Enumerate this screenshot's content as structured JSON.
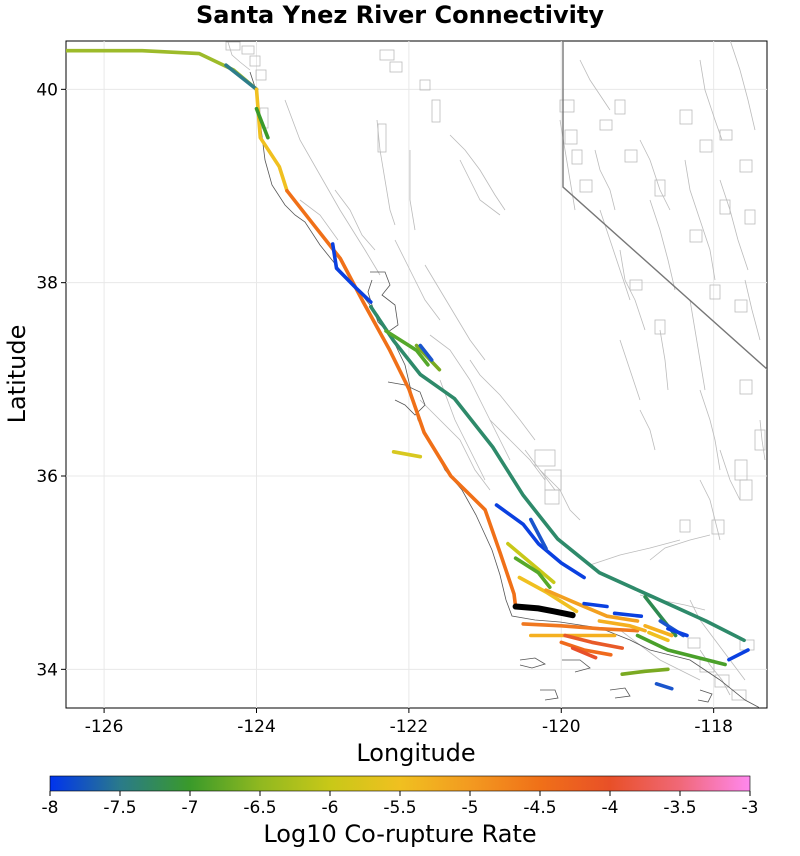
{
  "chart_data": {
    "type": "map",
    "title": "Santa Ynez River Connectivity",
    "xlabel": "Longitude",
    "ylabel": "Latitude",
    "xlim": [
      -126.5,
      -117.3
    ],
    "ylim": [
      33.6,
      40.5
    ],
    "x_ticks": [
      -126,
      -124,
      -122,
      -120,
      -118
    ],
    "y_ticks": [
      34,
      36,
      38,
      40
    ],
    "grid": true,
    "colorbar": {
      "label": "Log10 Co-rupture Rate",
      "min": -8,
      "max": -3,
      "ticks": [
        "-8",
        "-7.5",
        "-7",
        "-6.5",
        "-6",
        "-5.5",
        "-5",
        "-4.5",
        "-4",
        "-3.5",
        "-3"
      ],
      "colors": [
        "#0033ee",
        "#2a7a8a",
        "#3a9a2a",
        "#90b820",
        "#c8c818",
        "#f0c020",
        "#f39a20",
        "#f07018",
        "#e85028",
        "#f06878",
        "#ff88ee"
      ]
    },
    "source_fault": {
      "name": "Santa Ynez River",
      "color": "#000000",
      "points": [
        [
          -120.6,
          34.65
        ],
        [
          -120.3,
          34.63
        ],
        [
          -120.1,
          34.6
        ],
        [
          -119.85,
          34.56
        ]
      ]
    },
    "fault_sections": [
      {
        "rate": -5.9,
        "color": "#9dbb2a",
        "points": [
          [
            -126.5,
            40.4
          ],
          [
            -125.5,
            40.4
          ],
          [
            -124.75,
            40.37
          ],
          [
            -124.3,
            40.2
          ],
          [
            -124.0,
            40.0
          ]
        ]
      },
      {
        "rate": -7.6,
        "color": "#2e7d8a",
        "points": [
          [
            -124.4,
            40.25
          ],
          [
            -124.0,
            40.0
          ]
        ]
      },
      {
        "rate": -5.5,
        "color": "#f0c020",
        "points": [
          [
            -124.0,
            40.0
          ],
          [
            -123.95,
            39.5
          ],
          [
            -123.7,
            39.2
          ],
          [
            -123.6,
            38.95
          ]
        ]
      },
      {
        "rate": -4.6,
        "color": "#f07018",
        "points": [
          [
            -123.6,
            38.95
          ],
          [
            -123.25,
            38.6
          ],
          [
            -122.9,
            38.25
          ],
          [
            -122.6,
            37.8
          ],
          [
            -122.25,
            37.3
          ],
          [
            -122.0,
            36.9
          ],
          [
            -121.8,
            36.45
          ],
          [
            -121.45,
            36.0
          ],
          [
            -121.0,
            35.65
          ],
          [
            -120.8,
            35.2
          ],
          [
            -120.62,
            34.78
          ],
          [
            -120.6,
            34.65
          ]
        ]
      },
      {
        "rate": -7.1,
        "color": "#3a9a2a",
        "points": [
          [
            -124.0,
            39.8
          ],
          [
            -123.85,
            39.5
          ]
        ]
      },
      {
        "rate": -7.9,
        "color": "#0a40e0",
        "points": [
          [
            -123.0,
            38.4
          ],
          [
            -122.95,
            38.15
          ],
          [
            -122.7,
            37.95
          ],
          [
            -122.5,
            37.8
          ]
        ]
      },
      {
        "rate": -7.6,
        "color": "#2e8a6a",
        "points": [
          [
            -122.5,
            37.75
          ],
          [
            -122.2,
            37.4
          ],
          [
            -121.85,
            37.05
          ],
          [
            -121.4,
            36.8
          ],
          [
            -120.9,
            36.3
          ],
          [
            -120.5,
            35.8
          ],
          [
            -120.05,
            35.35
          ],
          [
            -119.5,
            35.0
          ],
          [
            -118.8,
            34.75
          ],
          [
            -118.1,
            34.5
          ],
          [
            -117.6,
            34.3
          ]
        ]
      },
      {
        "rate": -6.9,
        "color": "#55a82a",
        "points": [
          [
            -122.3,
            37.5
          ],
          [
            -121.9,
            37.3
          ],
          [
            -121.75,
            37.15
          ]
        ]
      },
      {
        "rate": -6.7,
        "color": "#7aaa22",
        "points": [
          [
            -121.9,
            37.35
          ],
          [
            -121.6,
            37.1
          ]
        ]
      },
      {
        "rate": -7.8,
        "color": "#1a55cc",
        "points": [
          [
            -121.85,
            37.35
          ],
          [
            -121.7,
            37.2
          ]
        ]
      },
      {
        "rate": -5.8,
        "color": "#d8c820",
        "points": [
          [
            -122.2,
            36.25
          ],
          [
            -121.85,
            36.2
          ]
        ]
      },
      {
        "rate": -7.9,
        "color": "#0a40e0",
        "points": [
          [
            -120.85,
            35.7
          ],
          [
            -120.5,
            35.5
          ],
          [
            -120.3,
            35.3
          ],
          [
            -120.0,
            35.1
          ],
          [
            -119.7,
            34.95
          ]
        ]
      },
      {
        "rate": -7.5,
        "color": "#1a55cc",
        "points": [
          [
            -120.4,
            35.55
          ],
          [
            -120.2,
            35.25
          ]
        ]
      },
      {
        "rate": -6.0,
        "color": "#c8c818",
        "points": [
          [
            -120.7,
            35.3
          ],
          [
            -120.4,
            35.1
          ],
          [
            -120.1,
            34.9
          ]
        ]
      },
      {
        "rate": -6.9,
        "color": "#55a82a",
        "points": [
          [
            -120.6,
            35.15
          ],
          [
            -120.3,
            35.0
          ],
          [
            -120.15,
            34.85
          ]
        ]
      },
      {
        "rate": -5.6,
        "color": "#f0c020",
        "points": [
          [
            -120.55,
            34.95
          ],
          [
            -120.2,
            34.8
          ],
          [
            -119.8,
            34.6
          ]
        ]
      },
      {
        "rate": -5.0,
        "color": "#f3a020",
        "points": [
          [
            -120.2,
            34.82
          ],
          [
            -119.85,
            34.7
          ],
          [
            -119.4,
            34.55
          ],
          [
            -119.0,
            34.5
          ]
        ]
      },
      {
        "rate": -4.7,
        "color": "#f07820",
        "points": [
          [
            -120.5,
            34.47
          ],
          [
            -120.0,
            34.45
          ],
          [
            -119.5,
            34.42
          ],
          [
            -119.0,
            34.4
          ]
        ]
      },
      {
        "rate": -5.2,
        "color": "#f5b020",
        "points": [
          [
            -120.4,
            34.35
          ],
          [
            -119.8,
            34.35
          ],
          [
            -119.3,
            34.35
          ]
        ]
      },
      {
        "rate": -4.3,
        "color": "#e85a28",
        "points": [
          [
            -119.95,
            34.35
          ],
          [
            -119.6,
            34.28
          ],
          [
            -119.2,
            34.22
          ]
        ]
      },
      {
        "rate": -4.5,
        "color": "#f06a1c",
        "points": [
          [
            -120.0,
            34.28
          ],
          [
            -119.7,
            34.2
          ],
          [
            -119.35,
            34.15
          ]
        ]
      },
      {
        "rate": -4.2,
        "color": "#e8502a",
        "points": [
          [
            -119.85,
            34.22
          ],
          [
            -119.55,
            34.12
          ]
        ]
      },
      {
        "rate": -5.3,
        "color": "#f5b020",
        "points": [
          [
            -119.5,
            34.5
          ],
          [
            -119.1,
            34.45
          ],
          [
            -118.9,
            34.4
          ]
        ]
      },
      {
        "rate": -7.9,
        "color": "#0a40e0",
        "points": [
          [
            -119.7,
            34.68
          ],
          [
            -119.4,
            34.65
          ]
        ]
      },
      {
        "rate": -7.8,
        "color": "#0a40e0",
        "points": [
          [
            -119.3,
            34.58
          ],
          [
            -118.95,
            34.55
          ]
        ]
      },
      {
        "rate": -6.9,
        "color": "#4aa02a",
        "points": [
          [
            -119.0,
            34.35
          ],
          [
            -118.6,
            34.2
          ],
          [
            -118.2,
            34.12
          ],
          [
            -117.85,
            34.05
          ]
        ]
      },
      {
        "rate": -7.2,
        "color": "#2e8a50",
        "points": [
          [
            -118.9,
            34.75
          ],
          [
            -118.7,
            34.55
          ],
          [
            -118.5,
            34.35
          ]
        ]
      },
      {
        "rate": -7.8,
        "color": "#1a55cc",
        "points": [
          [
            -118.7,
            34.5
          ],
          [
            -118.4,
            34.35
          ]
        ]
      },
      {
        "rate": -7.9,
        "color": "#0a40e0",
        "points": [
          [
            -118.6,
            34.42
          ],
          [
            -118.35,
            34.35
          ]
        ]
      },
      {
        "rate": -6.6,
        "color": "#7aaa22",
        "points": [
          [
            -119.2,
            33.95
          ],
          [
            -118.9,
            33.98
          ],
          [
            -118.6,
            34.0
          ]
        ]
      },
      {
        "rate": -7.7,
        "color": "#1a55cc",
        "points": [
          [
            -118.75,
            33.85
          ],
          [
            -118.55,
            33.8
          ]
        ]
      },
      {
        "rate": -7.9,
        "color": "#0a40e0",
        "points": [
          [
            -117.8,
            34.1
          ],
          [
            -117.55,
            34.2
          ]
        ]
      },
      {
        "rate": -5.2,
        "color": "#f5b020",
        "points": [
          [
            -118.9,
            34.45
          ],
          [
            -118.55,
            34.35
          ]
        ]
      },
      {
        "rate": -5.6,
        "color": "#f0c020",
        "points": [
          [
            -118.85,
            34.38
          ],
          [
            -118.6,
            34.3
          ]
        ]
      }
    ],
    "background_faults_color": "#bbbbbb",
    "coastline_color": "#555555"
  }
}
